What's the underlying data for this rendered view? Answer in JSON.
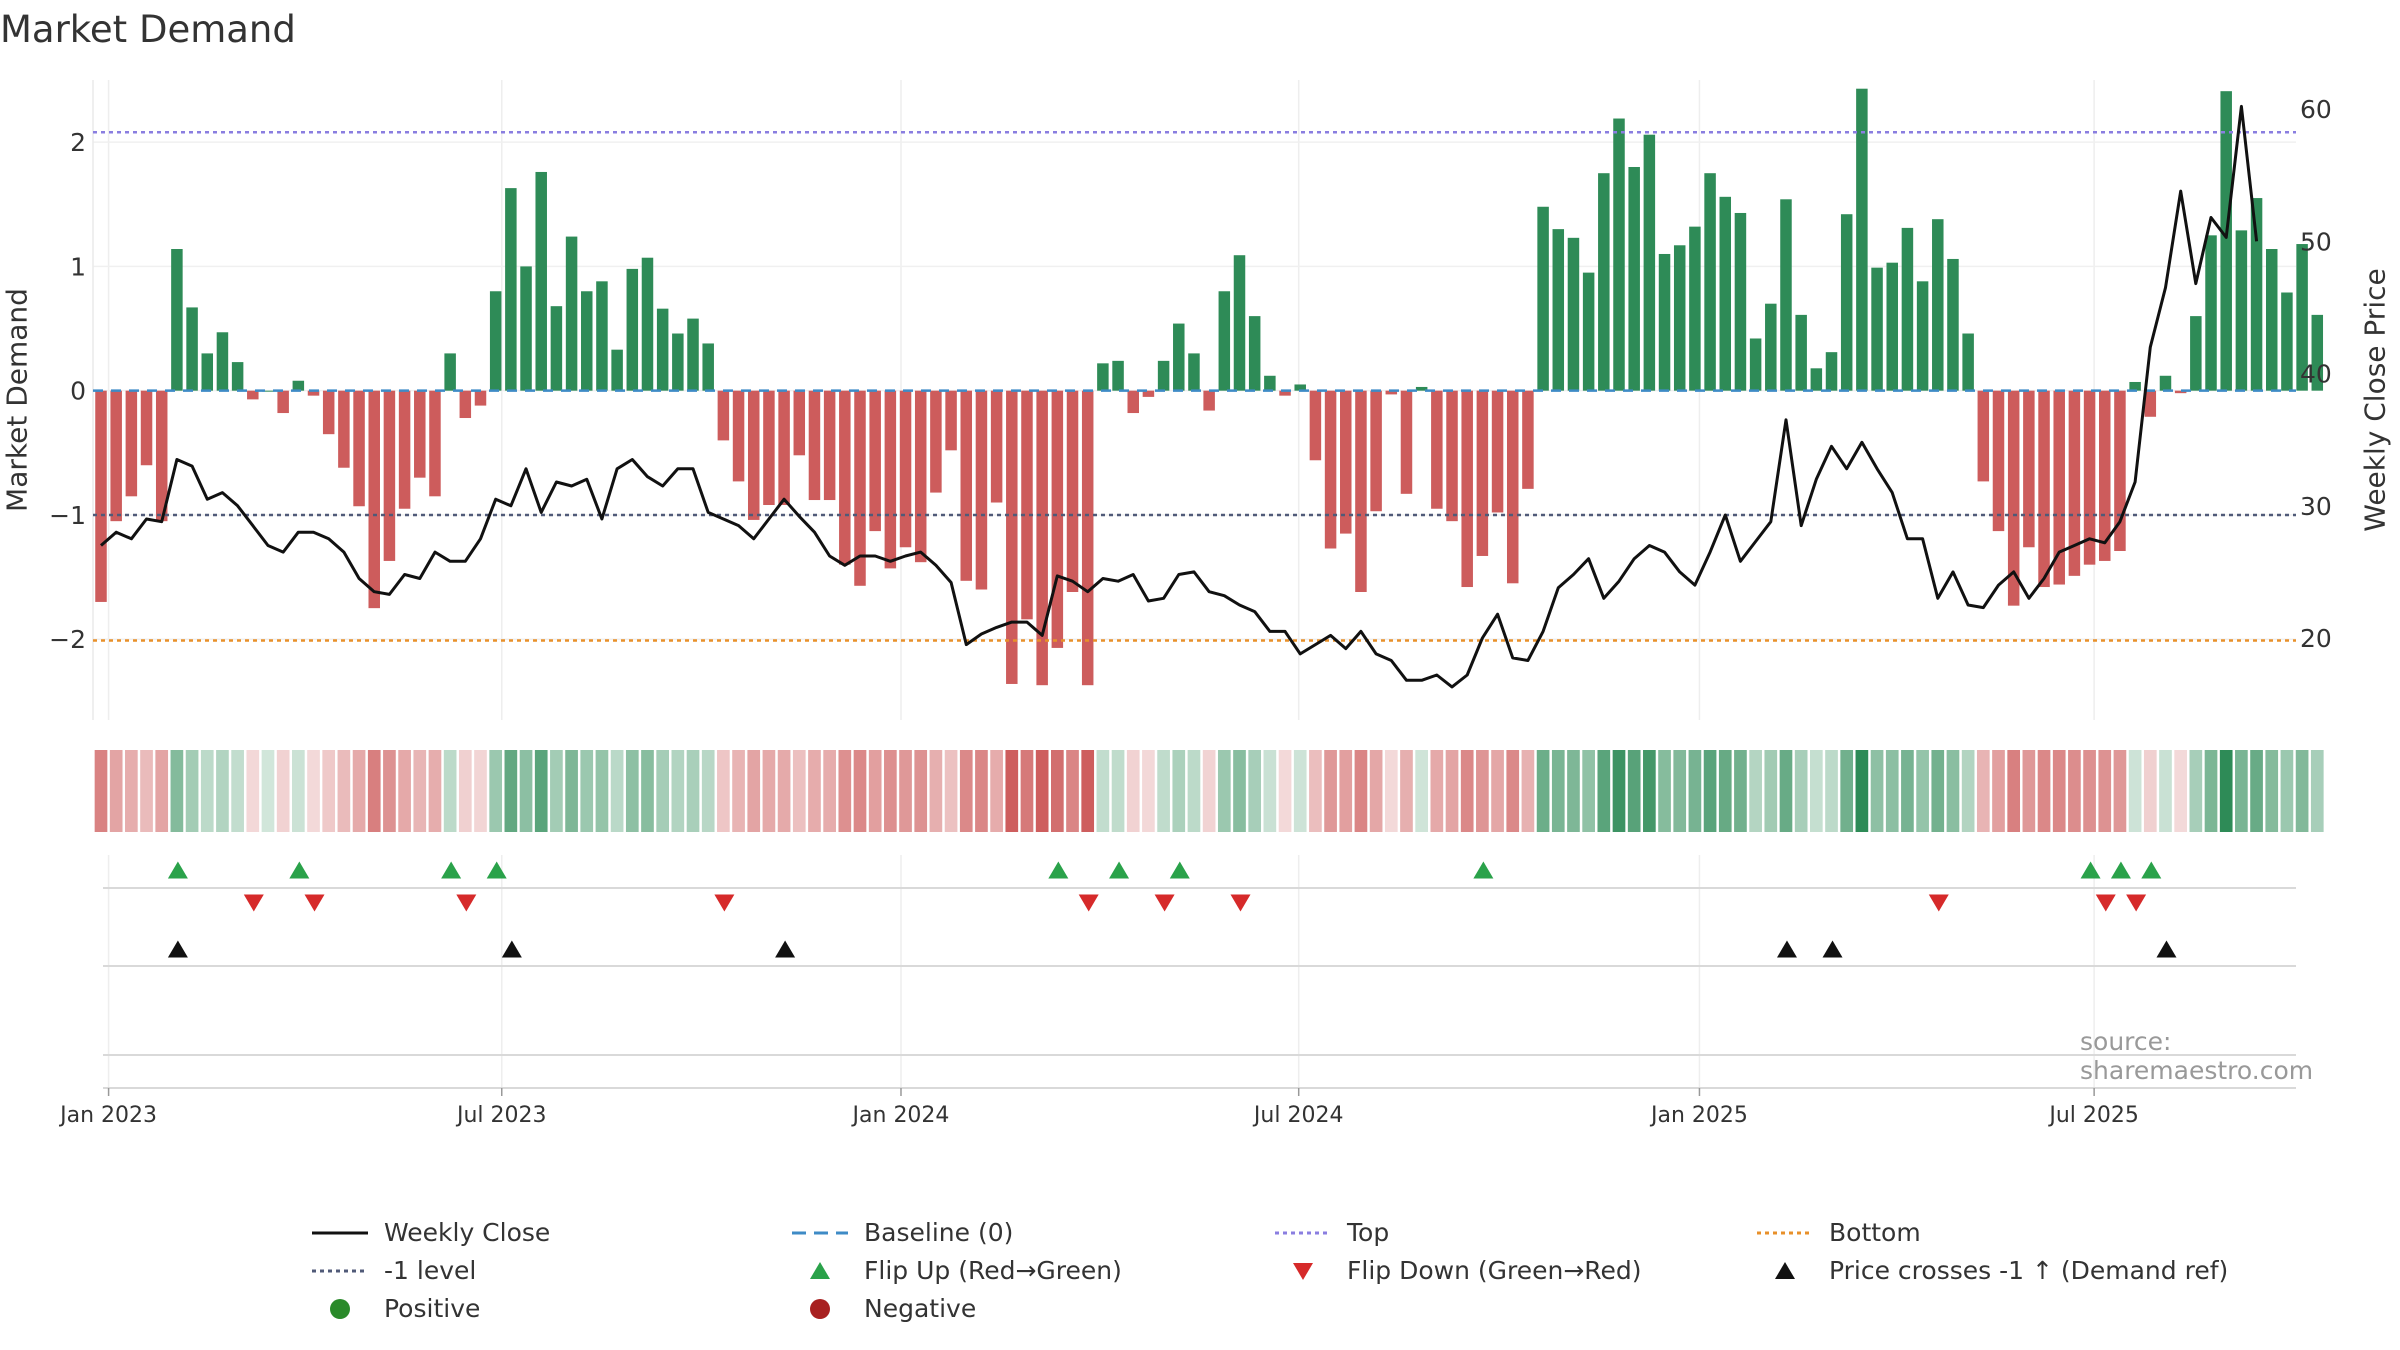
{
  "colors": {
    "positive": "#2e8b57",
    "negative": "#cd5c5c",
    "line": "#111111",
    "top": "#8a7ee0",
    "bottom": "#e8902a",
    "minus1": "#505a78",
    "baseline": "#3e8bc6",
    "flip_up": "#2aa24a",
    "flip_down": "#d62a2a",
    "cross": "#111111"
  },
  "chart_data": {
    "type": "bar+line",
    "title": "Market Demand",
    "ylabel": "Market Demand",
    "y2label": "Weekly Close Price",
    "ylim": [
      -2.65,
      2.5
    ],
    "y2lim": [
      13.8,
      62.2
    ],
    "yticks": [
      {
        "v": 2,
        "label": "2"
      },
      {
        "v": 1,
        "label": "1"
      },
      {
        "v": 0,
        "label": "0"
      },
      {
        "v": -1,
        "label": "−1"
      },
      {
        "v": -2,
        "label": "−2"
      }
    ],
    "y2ticks": [
      {
        "v": 60,
        "label": "60"
      },
      {
        "v": 50,
        "label": "50"
      },
      {
        "v": 40,
        "label": "40"
      },
      {
        "v": 30,
        "label": "30"
      },
      {
        "v": 20,
        "label": "20"
      }
    ],
    "x_tick_labels": [
      {
        "idx": 0.5,
        "label": "Jan 2023"
      },
      {
        "idx": 26.4,
        "label": "Jul 2023"
      },
      {
        "idx": 52.7,
        "label": "Jan 2024"
      },
      {
        "idx": 78.9,
        "label": "Jul 2024"
      },
      {
        "idx": 105.3,
        "label": "Jan 2025"
      },
      {
        "idx": 131.3,
        "label": "Jul 2025"
      }
    ],
    "reference_lines": {
      "top": 2.08,
      "bottom": -2.01,
      "minus1": -1.0,
      "baseline": 0
    },
    "demand": [
      -1.7,
      -1.05,
      -0.85,
      -0.6,
      -1.05,
      1.14,
      0.67,
      0.3,
      0.47,
      0.23,
      -0.07,
      0,
      -0.18,
      0.08,
      -0.04,
      -0.35,
      -0.62,
      -0.93,
      -1.75,
      -1.37,
      -0.95,
      -0.7,
      -0.85,
      0.3,
      -0.22,
      -0.12,
      0.8,
      1.63,
      1.0,
      1.76,
      0.68,
      1.24,
      0.8,
      0.88,
      0.33,
      0.98,
      1.07,
      0.66,
      0.46,
      0.58,
      0.38,
      -0.4,
      -0.73,
      -1.04,
      -0.92,
      -0.92,
      -0.52,
      -0.88,
      -0.88,
      -1.4,
      -1.57,
      -1.13,
      -1.43,
      -1.26,
      -1.38,
      -0.82,
      -0.48,
      -1.53,
      -1.6,
      -0.9,
      -2.36,
      -1.84,
      -2.37,
      -2.07,
      -1.62,
      -2.37,
      0.22,
      0.24,
      -0.18,
      -0.05,
      0.24,
      0.54,
      0.3,
      -0.16,
      0.8,
      1.09,
      0.6,
      0.12,
      -0.04,
      0.05,
      -0.56,
      -1.27,
      -1.15,
      -1.62,
      -0.97,
      -0.03,
      -0.83,
      0.03,
      -0.95,
      -1.05,
      -1.58,
      -1.33,
      -0.98,
      -1.55,
      -0.79,
      1.48,
      1.3,
      1.23,
      0.95,
      1.75,
      2.19,
      1.8,
      2.06,
      1.1,
      1.17,
      1.32,
      1.75,
      1.56,
      1.43,
      0.42,
      0.7,
      1.54,
      0.61,
      0.18,
      0.31,
      1.42,
      2.43,
      0.99,
      1.03,
      1.31,
      0.88,
      1.38,
      1.06,
      0.46,
      -0.73,
      -1.13,
      -1.73,
      -1.26,
      -1.58,
      -1.56,
      -1.49,
      -1.4,
      -1.37,
      -1.29,
      0.07,
      -0.21,
      0.12,
      -0.02,
      0.6,
      1.25,
      2.41,
      1.29,
      1.55,
      1.14,
      0.79,
      1.18,
      0.61
    ],
    "close": [
      27,
      28,
      27.5,
      29,
      28.8,
      33.5,
      33,
      30.5,
      31,
      30,
      28.5,
      27,
      26.5,
      28,
      28,
      27.5,
      26.5,
      24.5,
      23.5,
      23.3,
      24.8,
      24.5,
      26.5,
      25.8,
      25.8,
      27.5,
      30.5,
      30,
      32.8,
      29.5,
      31.8,
      31.5,
      32,
      29,
      32.8,
      33.5,
      32.2,
      31.5,
      32.8,
      32.8,
      29.5,
      29,
      28.5,
      27.5,
      29,
      30.5,
      29.2,
      28,
      26.2,
      25.5,
      26.2,
      26.2,
      25.8,
      26.2,
      26.5,
      25.5,
      24.2,
      19.5,
      20.3,
      20.8,
      21.2,
      21.2,
      20.2,
      24.7,
      24.3,
      23.5,
      24.5,
      24.3,
      24.8,
      22.8,
      23,
      24.8,
      25,
      23.5,
      23.2,
      22.5,
      22,
      20.5,
      20.5,
      18.8,
      19.5,
      20.2,
      19.2,
      20.5,
      18.8,
      18.3,
      16.8,
      16.8,
      17.2,
      16.3,
      17.2,
      20,
      21.8,
      18.5,
      18.3,
      20.5,
      23.8,
      24.8,
      26,
      23,
      24.3,
      26,
      27,
      26.5,
      25,
      24,
      26.5,
      29.3,
      25.8,
      27.3,
      28.8,
      36.5,
      28.5,
      32,
      34.5,
      32.8,
      34.8,
      32.8,
      31,
      27.5,
      27.5,
      23,
      25,
      22.5,
      22.3,
      24,
      25,
      23,
      24.5,
      26.5,
      27,
      27.5,
      27.2,
      28.8,
      31.8,
      42,
      46.5,
      53.8,
      46.8,
      51.8,
      50.3,
      60.2,
      50
    ],
    "flip_up_idx": [
      5,
      13,
      23,
      26,
      63,
      67,
      71,
      91,
      131,
      133,
      135
    ],
    "flip_down_idx": [
      10,
      14,
      24,
      41,
      65,
      70,
      75,
      121,
      132,
      134
    ],
    "cross_up_idx": [
      5,
      27,
      45,
      111,
      114,
      136
    ]
  },
  "legend": [
    {
      "key": "line",
      "label": "Weekly Close"
    },
    {
      "key": "baseline",
      "label": "Baseline (0)"
    },
    {
      "key": "top",
      "label": "Top"
    },
    {
      "key": "bottom",
      "label": "Bottom"
    },
    {
      "key": "minus1",
      "label": "-1 level"
    },
    {
      "key": "flip_up",
      "label": "Flip Up (Red→Green)"
    },
    {
      "key": "flip_down",
      "label": "Flip Down (Green→Red)"
    },
    {
      "key": "cross",
      "label": "Price crosses -1 ↑ (Demand ref)"
    },
    {
      "key": "pos_dot",
      "label": "Positive"
    },
    {
      "key": "neg_dot",
      "label": "Negative"
    }
  ],
  "source": "source: sharemaestro.com"
}
